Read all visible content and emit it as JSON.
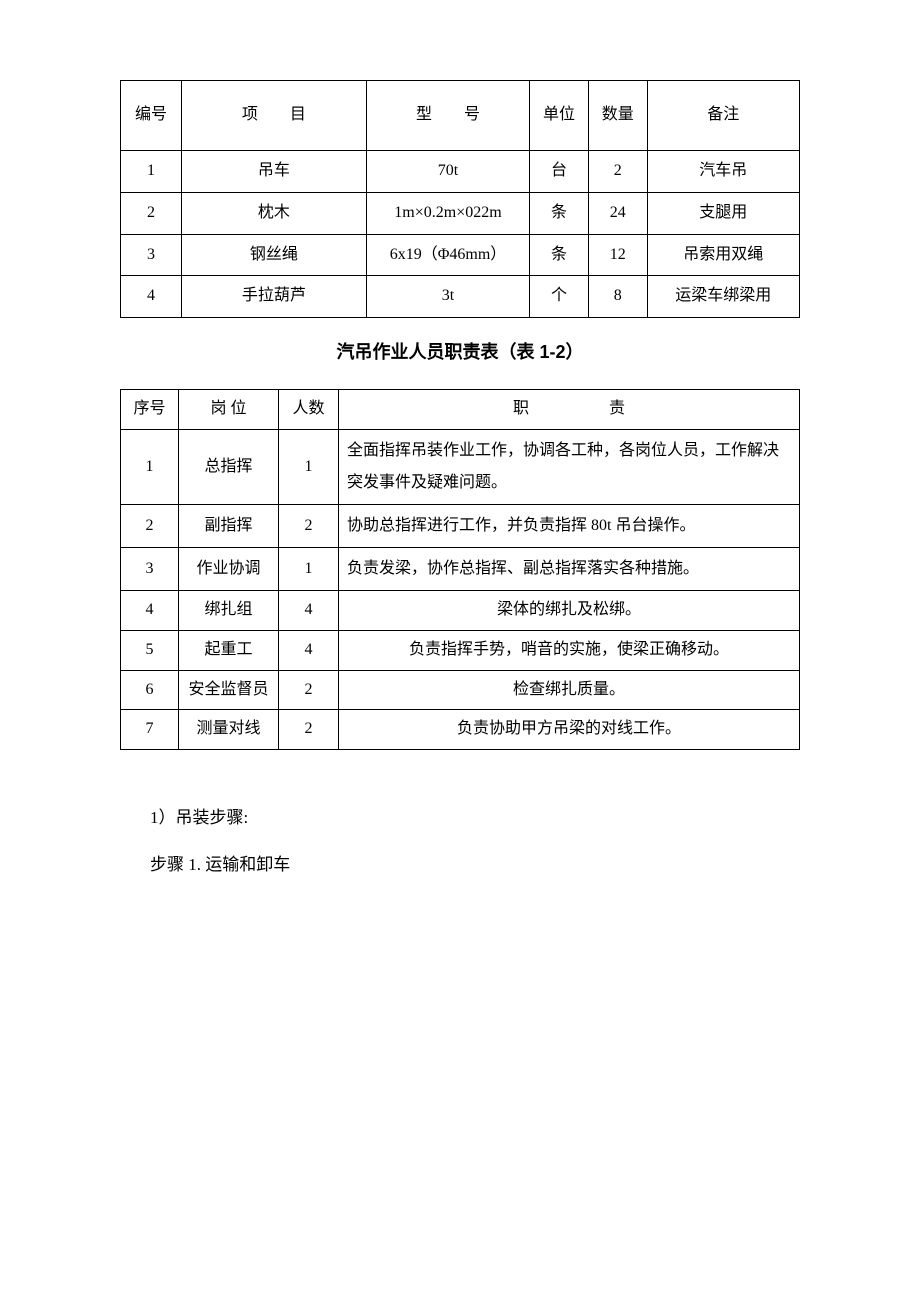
{
  "table1": {
    "headers": {
      "id": "编号",
      "item": "项　　目",
      "model": "型　　号",
      "unit": "单位",
      "qty": "数量",
      "remark": "备注"
    },
    "rows": [
      {
        "id": "1",
        "item": "吊车",
        "model": "70t",
        "unit": "台",
        "qty": "2",
        "remark": "汽车吊"
      },
      {
        "id": "2",
        "item": "枕木",
        "model": "1m×0.2m×022m",
        "unit": "条",
        "qty": "24",
        "remark": "支腿用"
      },
      {
        "id": "3",
        "item": "钢丝绳",
        "model": "6x19（Φ46mm）",
        "unit": "条",
        "qty": "12",
        "remark": "吊索用双绳"
      },
      {
        "id": "4",
        "item": "手拉葫芦",
        "model": "3t",
        "unit": "个",
        "qty": "8",
        "remark": "运梁车绑梁用"
      }
    ]
  },
  "section_title": "汽吊作业人员职责表（表 1-2）",
  "table2": {
    "headers": {
      "seq": "序号",
      "role": "岗 位",
      "count": "人数",
      "duty": "职　　　　　责"
    },
    "rows": [
      {
        "seq": "1",
        "role": "总指挥",
        "count": "1",
        "duty": "全面指挥吊装作业工作，协调各工种，各岗位人员，工作解决突发事件及疑难问题。",
        "align": "left",
        "tall": true
      },
      {
        "seq": "2",
        "role": "副指挥",
        "count": "2",
        "duty": "协助总指挥进行工作，并负责指挥 80t 吊台操作。",
        "align": "left"
      },
      {
        "seq": "3",
        "role": "作业协调",
        "count": "1",
        "duty": "负责发梁，协作总指挥、副总指挥落实各种措施。",
        "align": "left"
      },
      {
        "seq": "4",
        "role": "绑扎组",
        "count": "4",
        "duty": "梁体的绑扎及松绑。",
        "align": "center"
      },
      {
        "seq": "5",
        "role": "起重工",
        "count": "4",
        "duty": "负责指挥手势，哨音的实施，使梁正确移动。",
        "align": "center"
      },
      {
        "seq": "6",
        "role": "安全监督员",
        "count": "2",
        "duty": "检查绑扎质量。",
        "align": "center"
      },
      {
        "seq": "7",
        "role": "测量对线",
        "count": "2",
        "duty": "负责协助甲方吊梁的对线工作。",
        "align": "center"
      }
    ]
  },
  "body": {
    "line1": "1）吊装步骤:",
    "line2": "步骤 1. 运输和卸车"
  }
}
